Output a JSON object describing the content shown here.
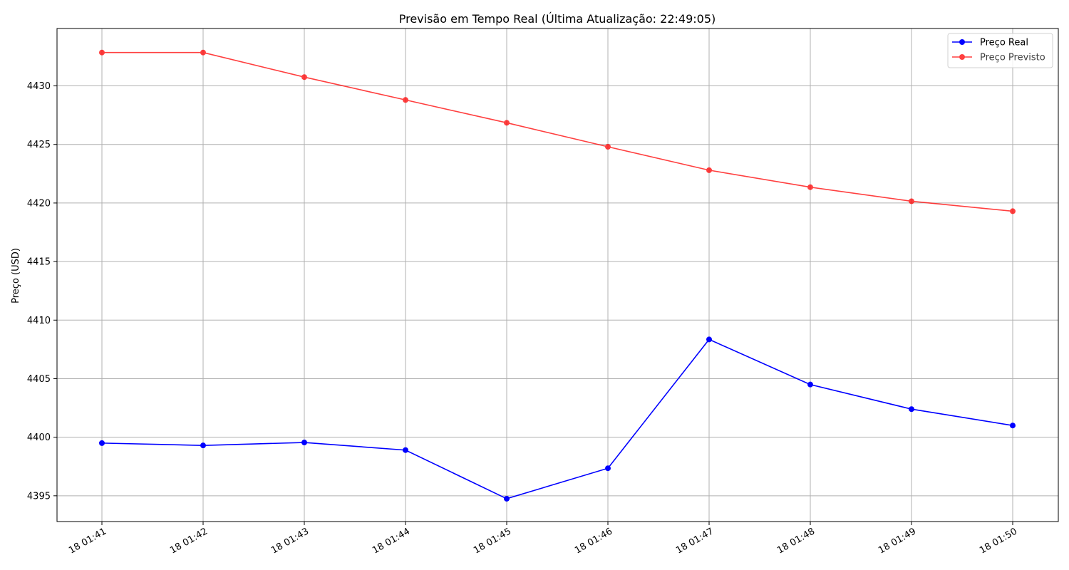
{
  "chart_data": {
    "type": "line",
    "title": "Previsão em Tempo Real (Última Atualização: 22:49:05)",
    "xlabel": "",
    "ylabel": "Preço (USD)",
    "categories": [
      "18 01:41",
      "18 01:42",
      "18 01:43",
      "18 01:44",
      "18 01:45",
      "18 01:46",
      "18 01:47",
      "18 01:48",
      "18 01:49",
      "18 01:50"
    ],
    "yticks": [
      4395,
      4400,
      4405,
      4410,
      4415,
      4420,
      4425,
      4430
    ],
    "ylim": [
      4392.8,
      4434.9
    ],
    "grid": true,
    "legend_position": "top-right",
    "series": [
      {
        "name": "Preço Real",
        "color": "#0000ff",
        "values": [
          4399.5,
          4399.3,
          4399.55,
          4398.9,
          4394.75,
          4397.35,
          4408.35,
          4404.5,
          4402.4,
          4401.0
        ]
      },
      {
        "name": "Preço Previsto",
        "color": "#ff0000",
        "values": [
          4432.85,
          4432.85,
          4430.75,
          4428.8,
          4426.85,
          4424.8,
          4422.8,
          4421.35,
          4420.15,
          4419.3
        ]
      }
    ]
  }
}
